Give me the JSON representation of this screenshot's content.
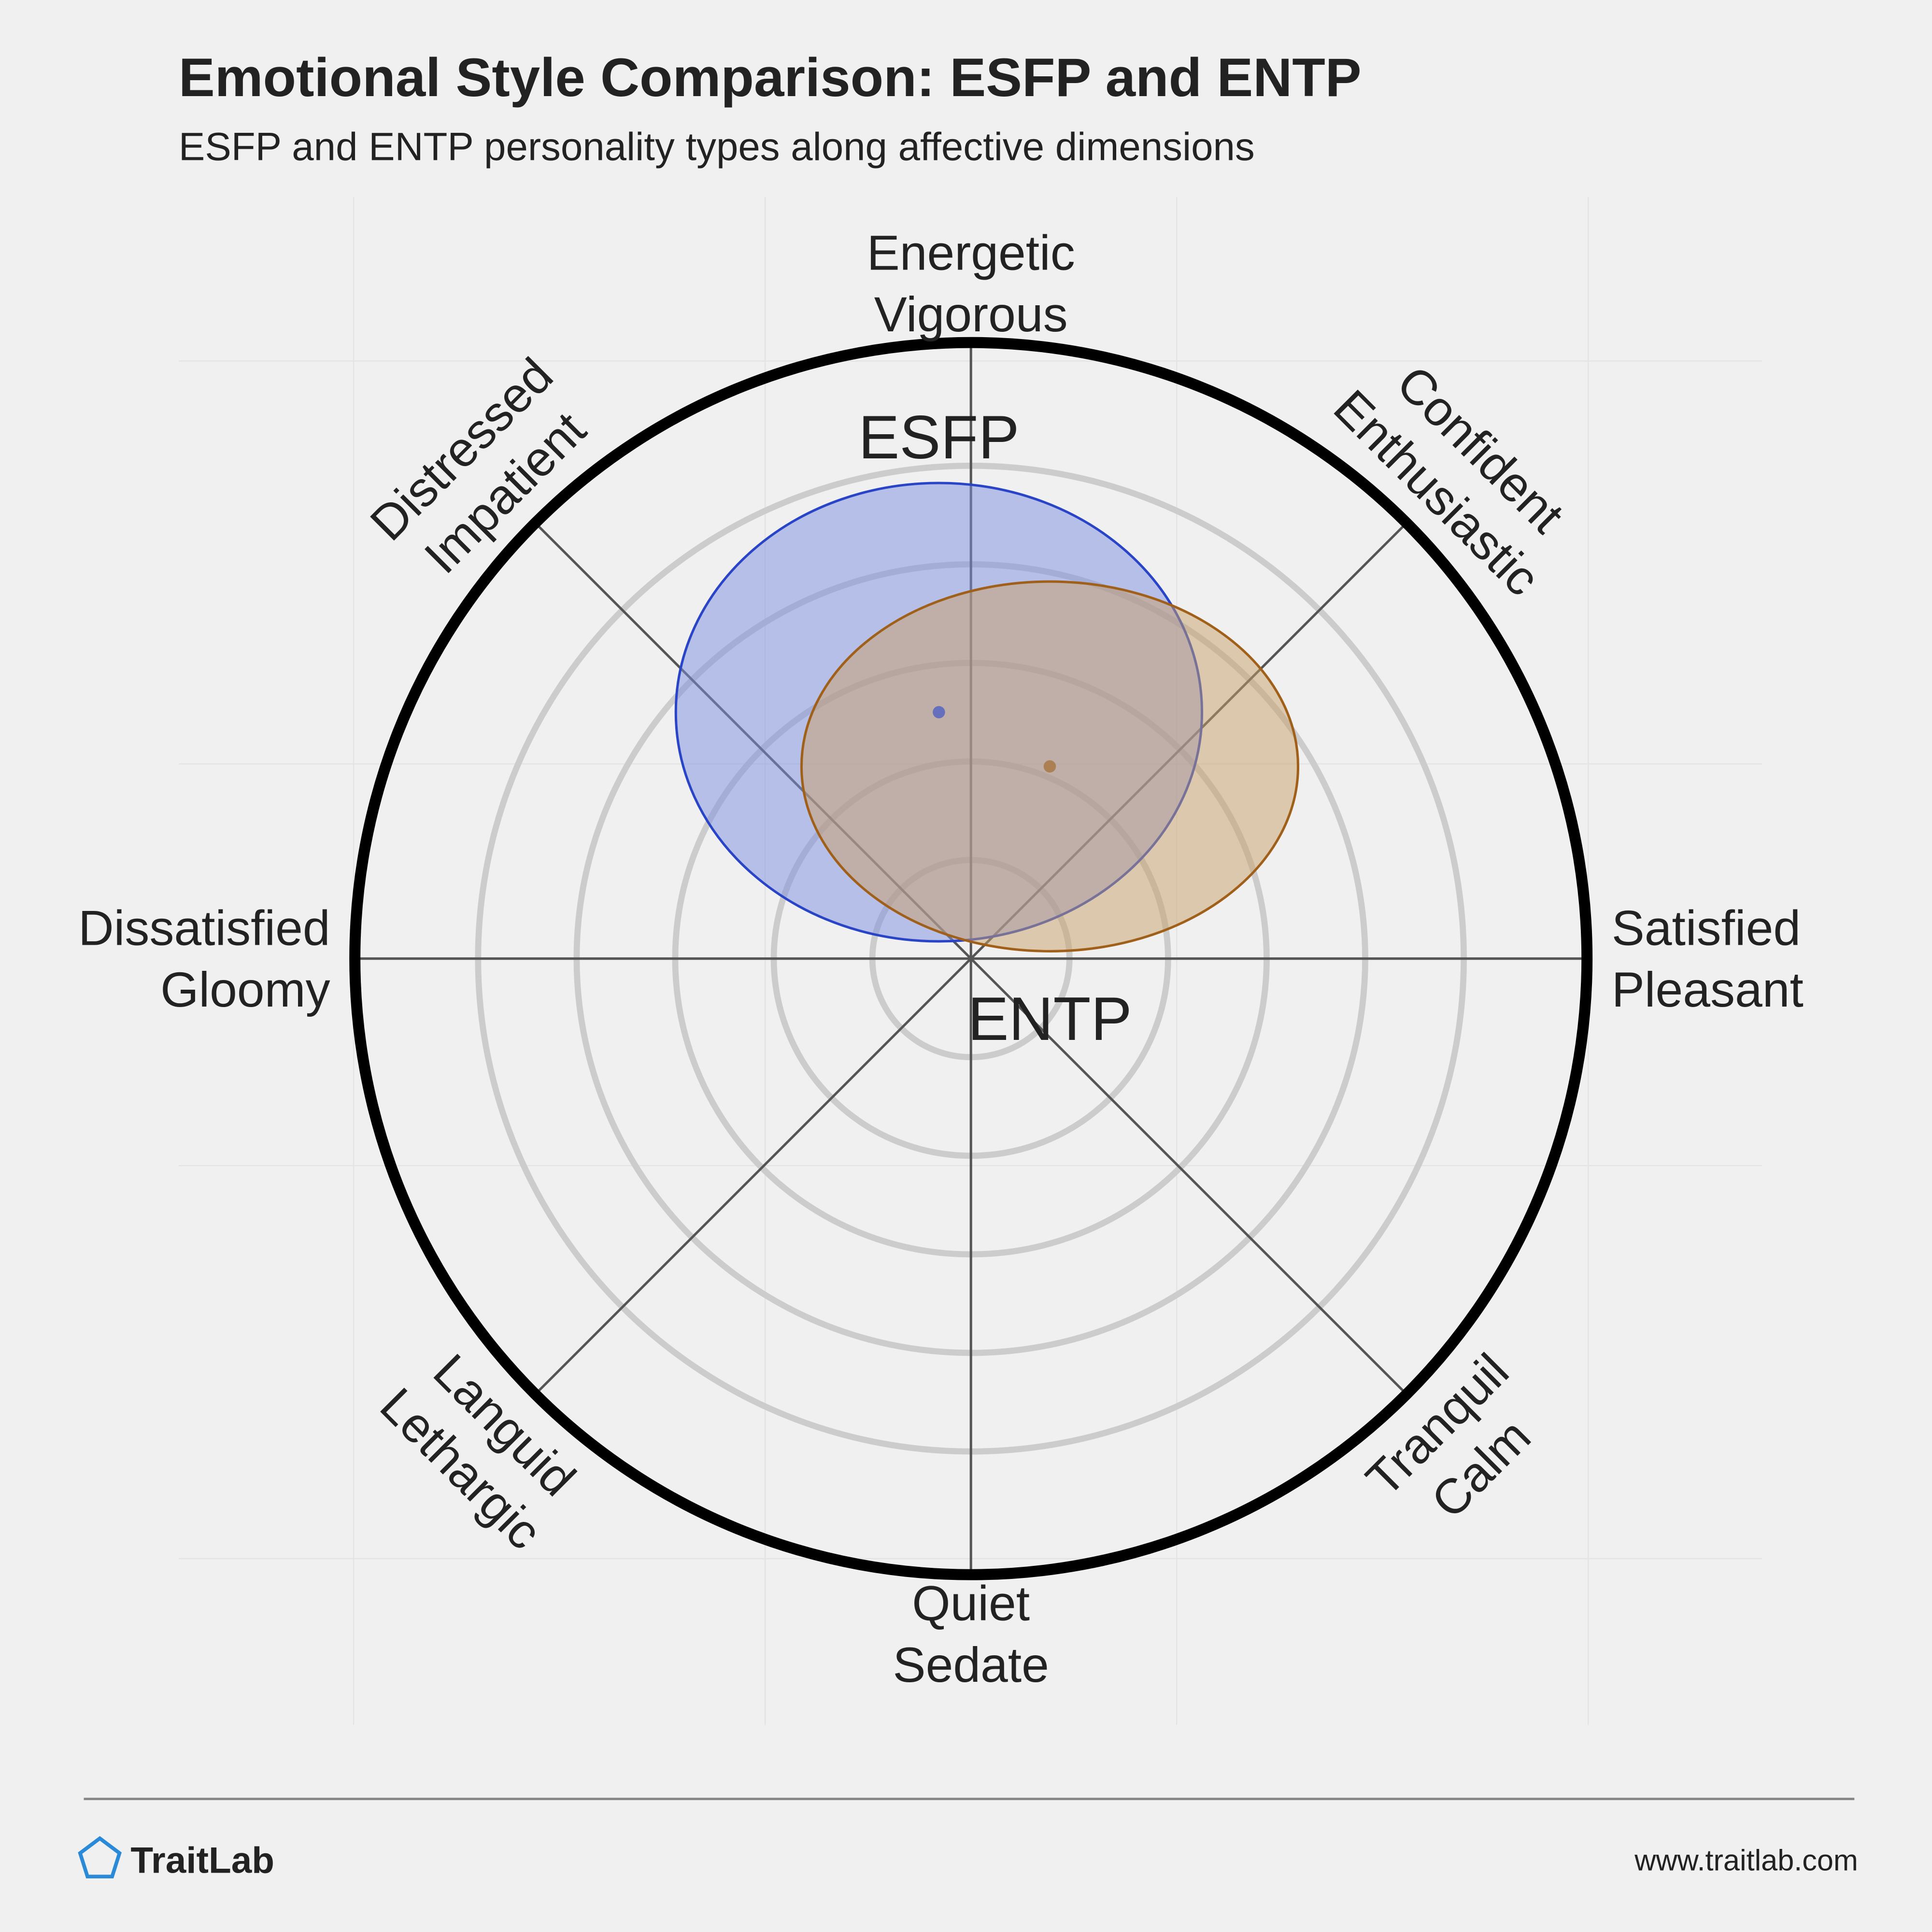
{
  "chart_data": {
    "type": "circumplex",
    "title": "Emotional Style Comparison: ESFP and ENTP",
    "subtitle": "ESFP and ENTP personality types along affective dimensions",
    "xlim": [
      -1,
      1
    ],
    "ylim": [
      -1,
      1
    ],
    "rings": [
      0.16,
      0.32,
      0.48,
      0.64,
      0.8
    ],
    "axis_labels": [
      [
        "Energetic",
        "Vigorous"
      ],
      [
        "Confident",
        "Enthusiastic"
      ],
      [
        "Satisfied",
        "Pleasant"
      ],
      [
        "Tranquil",
        "Calm"
      ],
      [
        "Quiet",
        "Sedate"
      ],
      [
        "Languid",
        "Lethargic"
      ],
      [
        "Dissatisfied",
        "Gloomy"
      ],
      [
        "Distressed",
        "Impatient"
      ]
    ],
    "series": [
      {
        "name": "ESFP",
        "color": "#7b8ee0",
        "edge_color": "#2a44c8",
        "label_color": "#3a4fb8",
        "x": -0.052,
        "y": 0.4,
        "rx": 0.427,
        "ry": 0.372
      },
      {
        "name": "ENTP",
        "color": "#c8a067",
        "edge_color": "#a0601a",
        "label_color": "#8a5010",
        "x": 0.128,
        "y": 0.312,
        "rx": 0.403,
        "ry": 0.3
      }
    ]
  },
  "footer": {
    "brand": "TraitLab",
    "url": "www.traitlab.com"
  }
}
